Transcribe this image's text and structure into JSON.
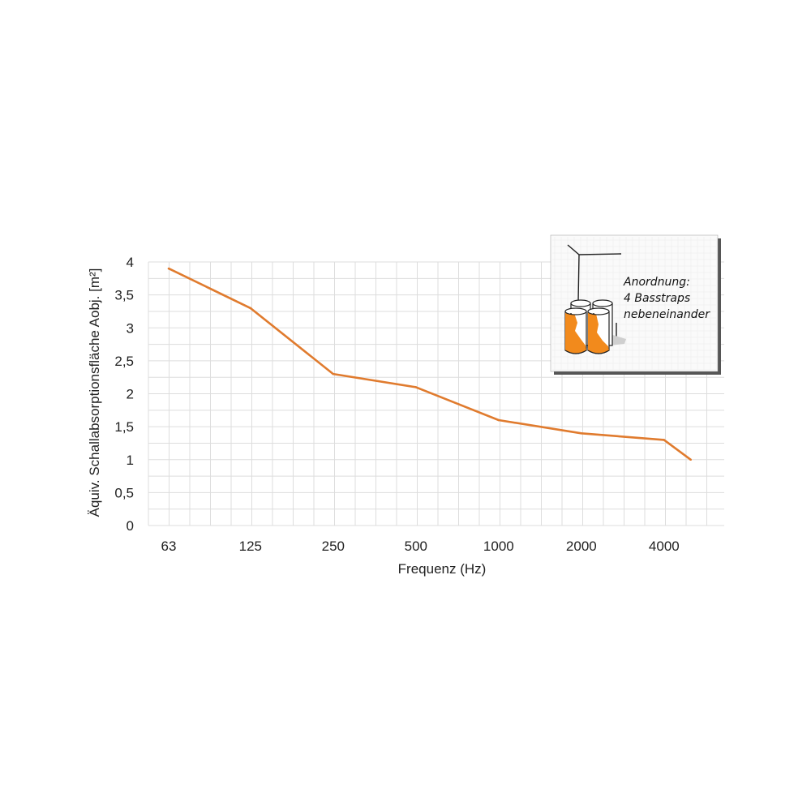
{
  "chart_data": {
    "type": "line",
    "xlabel": "Frequenz (Hz)",
    "ylabel": "Äquiv. Schallabsorptionsfläche Aobj. [m²]",
    "categories": [
      "63",
      "125",
      "250",
      "500",
      "1000",
      "2000",
      "4000"
    ],
    "x": [
      63,
      125,
      250,
      500,
      1000,
      2000,
      4000,
      5000
    ],
    "x_scale": "log",
    "y_ticks": [
      "0",
      "0,5",
      "1",
      "1,5",
      "2",
      "2,5",
      "3",
      "3,5",
      "4"
    ],
    "ylim": [
      0,
      4
    ],
    "grid": true,
    "series": [
      {
        "values": [
          3.9,
          3.3,
          2.3,
          2.1,
          1.6,
          1.4,
          1.3,
          1.0
        ]
      }
    ],
    "colors": {
      "line": "#e07b2e",
      "grid": "#dddddd",
      "accent": "#f28a1c"
    }
  },
  "inset": {
    "lines": [
      "Anordnung:",
      "4 Basstraps",
      "nebeneinander"
    ]
  }
}
